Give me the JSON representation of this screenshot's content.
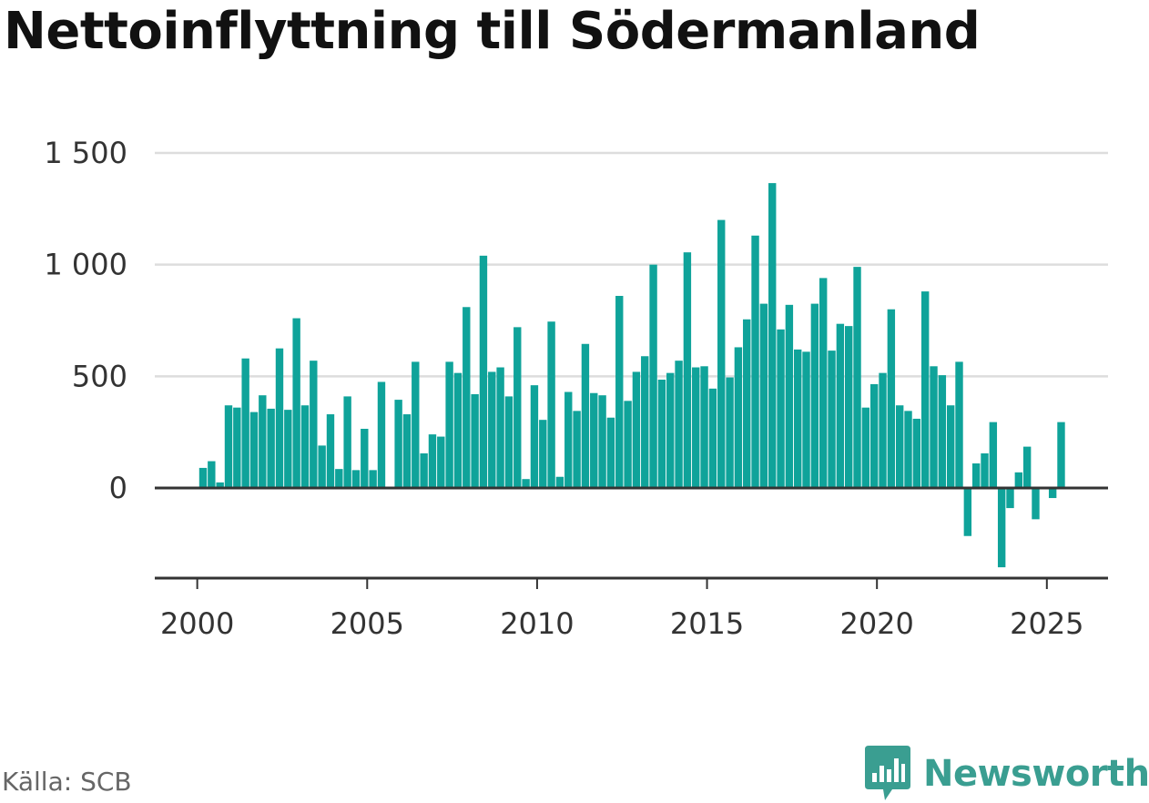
{
  "title": "Nettoinflyttning till Södermanland",
  "source": "Källa: SCB",
  "brand": {
    "name": "Newsworthy",
    "icon": "newsworthy-logo-icon",
    "color": "#3a9e91"
  },
  "colors": {
    "bar": "#0fa39a",
    "grid": "#dddddd",
    "axis": "#333333"
  },
  "chart_data": {
    "type": "bar",
    "title": "Nettoinflyttning till Södermanland",
    "xlabel": "",
    "ylabel": "",
    "ylim": [
      -400,
      1600
    ],
    "y_ticks": [
      {
        "value": 0,
        "label": "0"
      },
      {
        "value": 500,
        "label": "500"
      },
      {
        "value": 1000,
        "label": "1 000"
      },
      {
        "value": 1500,
        "label": "1 500"
      }
    ],
    "x_ticks": [
      {
        "value": 2000,
        "label": "2000"
      },
      {
        "value": 2005,
        "label": "2005"
      },
      {
        "value": 2010,
        "label": "2010"
      },
      {
        "value": 2015,
        "label": "2015"
      },
      {
        "value": 2020,
        "label": "2020"
      },
      {
        "value": 2025,
        "label": "2025"
      }
    ],
    "xlim": [
      1998.75,
      2026.8
    ],
    "grid": true,
    "legend": "none",
    "x": [
      2000.17,
      2000.42,
      2000.67,
      2000.92,
      2001.17,
      2001.42,
      2001.67,
      2001.92,
      2002.17,
      2002.42,
      2002.67,
      2002.92,
      2003.17,
      2003.42,
      2003.67,
      2003.92,
      2004.17,
      2004.42,
      2004.67,
      2004.92,
      2005.17,
      2005.42,
      2005.67,
      2005.92,
      2006.17,
      2006.42,
      2006.67,
      2006.92,
      2007.17,
      2007.42,
      2007.67,
      2007.92,
      2008.17,
      2008.42,
      2008.67,
      2008.92,
      2009.17,
      2009.42,
      2009.67,
      2009.92,
      2010.17,
      2010.42,
      2010.67,
      2010.92,
      2011.17,
      2011.42,
      2011.67,
      2011.92,
      2012.17,
      2012.42,
      2012.67,
      2012.92,
      2013.17,
      2013.42,
      2013.67,
      2013.92,
      2014.17,
      2014.42,
      2014.67,
      2014.92,
      2015.17,
      2015.42,
      2015.67,
      2015.92,
      2016.17,
      2016.42,
      2016.67,
      2016.92,
      2017.17,
      2017.42,
      2017.67,
      2017.92,
      2018.17,
      2018.42,
      2018.67,
      2018.92,
      2019.17,
      2019.42,
      2019.67,
      2019.92,
      2020.17,
      2020.42,
      2020.67,
      2020.92,
      2021.17,
      2021.42,
      2021.67,
      2021.92,
      2022.17,
      2022.42,
      2022.67,
      2022.92,
      2023.17,
      2023.42,
      2023.67,
      2023.92,
      2024.17,
      2024.42,
      2024.67,
      2024.92,
      2025.17,
      2025.42
    ],
    "values": [
      90,
      120,
      25,
      370,
      360,
      580,
      340,
      415,
      355,
      625,
      350,
      760,
      370,
      570,
      190,
      330,
      85,
      410,
      80,
      265,
      80,
      475,
      0,
      395,
      330,
      565,
      155,
      240,
      230,
      565,
      515,
      810,
      420,
      1040,
      520,
      540,
      410,
      720,
      40,
      460,
      305,
      745,
      50,
      430,
      345,
      645,
      425,
      415,
      315,
      860,
      390,
      520,
      590,
      1000,
      485,
      515,
      570,
      1055,
      540,
      545,
      445,
      1200,
      495,
      630,
      755,
      1130,
      825,
      1365,
      710,
      820,
      620,
      610,
      825,
      940,
      615,
      735,
      725,
      990,
      360,
      465,
      515,
      800,
      370,
      345,
      310,
      880,
      545,
      505,
      370,
      565,
      -215,
      110,
      155,
      295,
      -355,
      -90,
      70,
      185,
      -140,
      0,
      -45,
      295
    ]
  }
}
